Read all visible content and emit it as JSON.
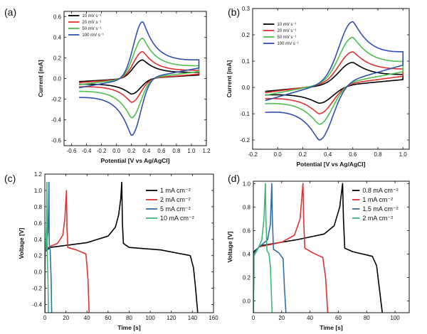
{
  "chart_data": [
    {
      "panel": "(a)",
      "type": "line",
      "xlabel": "Potential [V vs Ag/AgCl]",
      "ylabel": "Current [mA]",
      "xlim": [
        -0.7,
        1.2
      ],
      "ylim": [
        -0.65,
        0.65
      ],
      "xticks": [
        "-0.6",
        "-0.4",
        "-0.2",
        "0.0",
        "0.2",
        "0.4",
        "0.6",
        "0.8",
        "1.0",
        "1.2"
      ],
      "yticks": [
        "-0.6",
        "-0.4",
        "-0.2",
        "0.0",
        "0.2",
        "0.4",
        "0.6"
      ],
      "legend_position": "top-left",
      "cv": {
        "x_start": -0.5,
        "x_end": 1.1,
        "x_ox": 0.35,
        "x_red": 0.2
      },
      "series": [
        {
          "name": "10 mV s⁻¹",
          "color": "#000000",
          "ipa": 0.18,
          "ipc": -0.15,
          "bg_start": -0.03,
          "bg_end": 0.04
        },
        {
          "name": "20 mV s⁻¹",
          "color": "#e03030",
          "ipa": 0.26,
          "ipc": -0.23,
          "bg_start": -0.04,
          "bg_end": 0.05
        },
        {
          "name": "50 mV s⁻¹",
          "color": "#4cbf4c",
          "ipa": 0.39,
          "ipc": -0.38,
          "bg_start": -0.06,
          "bg_end": 0.08
        },
        {
          "name": "100 mV s⁻¹",
          "color": "#3050b0",
          "ipa": 0.55,
          "ipc": -0.55,
          "bg_start": -0.09,
          "bg_end": 0.12
        }
      ]
    },
    {
      "panel": "(b)",
      "type": "line",
      "xlabel": "Potential [V vs Ag/AgCl]",
      "ylabel": "Current [mA]",
      "xlim": [
        -0.2,
        1.05
      ],
      "ylim": [
        -0.235,
        0.3
      ],
      "xticks": [
        "-0.2",
        "0.0",
        "0.2",
        "0.4",
        "0.6",
        "0.8",
        "1.0"
      ],
      "yticks": [
        "-0.2",
        "-0.1",
        "0.0",
        "0.1",
        "0.2",
        "0.3"
      ],
      "legend_position": "top-left",
      "cv": {
        "x_start": -0.1,
        "x_end": 1.0,
        "x_ox": 0.6,
        "x_red": 0.33
      },
      "series": [
        {
          "name": "10 mV s⁻¹",
          "color": "#000000",
          "ipa": 0.095,
          "ipc": -0.06,
          "bg_start": -0.015,
          "bg_end": 0.035
        },
        {
          "name": "20 mV s⁻¹",
          "color": "#e03030",
          "ipa": 0.135,
          "ipc": -0.1,
          "bg_start": -0.02,
          "bg_end": 0.05
        },
        {
          "name": "50 mV s⁻¹",
          "color": "#4cbf4c",
          "ipa": 0.19,
          "ipc": -0.14,
          "bg_start": -0.03,
          "bg_end": 0.07
        },
        {
          "name": "100 mV s⁻¹",
          "color": "#3050b0",
          "ipa": 0.25,
          "ipc": -0.2,
          "bg_start": -0.05,
          "bg_end": 0.1
        }
      ]
    },
    {
      "panel": "(c)",
      "type": "line",
      "xlabel": "Time [s]",
      "ylabel": "Voltage [V]",
      "xlim": [
        0,
        160
      ],
      "ylim": [
        -0.5,
        1.2
      ],
      "xticks": [
        "0",
        "20",
        "40",
        "60",
        "80",
        "100",
        "120",
        "140",
        "160"
      ],
      "yticks": [
        "-0.4",
        "-0.2",
        "0.0",
        "0.2",
        "0.4",
        "0.6",
        "0.8",
        "1.0",
        "1.2"
      ],
      "legend_position": "top-right",
      "series": [
        {
          "name": "1 mA cm⁻²",
          "color": "#000000",
          "points": [
            [
              0,
              -0.5
            ],
            [
              0.3,
              0.25
            ],
            [
              5,
              0.3
            ],
            [
              40,
              0.36
            ],
            [
              60,
              0.44
            ],
            [
              67,
              0.55
            ],
            [
              70,
              0.7
            ],
            [
              72,
              0.9
            ],
            [
              73,
              1.1
            ],
            [
              73.6,
              0.6
            ],
            [
              74.5,
              0.35
            ],
            [
              80,
              0.3
            ],
            [
              110,
              0.27
            ],
            [
              138,
              0.2
            ],
            [
              141,
              0.05
            ],
            [
              143,
              -0.2
            ],
            [
              145,
              -0.5
            ]
          ]
        },
        {
          "name": "2 mA cm⁻²",
          "color": "#e03030",
          "points": [
            [
              0,
              -0.5
            ],
            [
              0.3,
              0.25
            ],
            [
              3,
              0.3
            ],
            [
              12,
              0.35
            ],
            [
              17,
              0.45
            ],
            [
              19,
              0.65
            ],
            [
              20.5,
              1.0
            ],
            [
              21,
              0.55
            ],
            [
              21.8,
              0.3
            ],
            [
              30,
              0.27
            ],
            [
              39,
              0.22
            ],
            [
              41,
              -0.1
            ],
            [
              42,
              -0.5
            ]
          ]
        },
        {
          "name": "5 mA cm⁻²",
          "color": "#2f6fa8",
          "points": [
            [
              0,
              -0.5
            ],
            [
              0.2,
              0.25
            ],
            [
              1.5,
              0.3
            ],
            [
              3,
              0.5
            ],
            [
              3.6,
              0.8
            ],
            [
              3.9,
              1.1
            ],
            [
              4.2,
              0.35
            ],
            [
              5,
              0.28
            ],
            [
              6,
              -0.1
            ],
            [
              6.5,
              -0.5
            ]
          ]
        },
        {
          "name": "10 mA cm⁻²",
          "color": "#3cb878",
          "points": [
            [
              0,
              -0.5
            ],
            [
              0.1,
              0.25
            ],
            [
              0.8,
              0.3
            ],
            [
              1.6,
              0.6
            ],
            [
              1.95,
              1.1
            ],
            [
              2.2,
              0.3
            ],
            [
              3,
              -0.1
            ],
            [
              3.4,
              -0.5
            ]
          ]
        }
      ]
    },
    {
      "panel": "(d)",
      "type": "line",
      "xlabel": "Time [s]",
      "ylabel": "Voltage [V]",
      "xlim": [
        0,
        110
      ],
      "ylim": [
        -0.1,
        1.02
      ],
      "xticks": [
        "0",
        "20",
        "40",
        "60",
        "80",
        "100"
      ],
      "yticks": [
        "0.0",
        "0.2",
        "0.4",
        "0.6",
        "0.8",
        "1.0"
      ],
      "legend_position": "top-right",
      "series": [
        {
          "name": "0.8 mA cm⁻²",
          "color": "#000000",
          "points": [
            [
              0,
              -0.1
            ],
            [
              0.4,
              0.42
            ],
            [
              5,
              0.47
            ],
            [
              30,
              0.52
            ],
            [
              50,
              0.57
            ],
            [
              57,
              0.64
            ],
            [
              61,
              0.8
            ],
            [
              63,
              1.0
            ],
            [
              63.6,
              0.7
            ],
            [
              64.5,
              0.45
            ],
            [
              70,
              0.42
            ],
            [
              84,
              0.38
            ],
            [
              87,
              0.3
            ],
            [
              89,
              0.1
            ],
            [
              91,
              -0.1
            ]
          ]
        },
        {
          "name": "1 mA cm⁻²",
          "color": "#e03030",
          "points": [
            [
              0,
              -0.1
            ],
            [
              0.3,
              0.4
            ],
            [
              4,
              0.46
            ],
            [
              20,
              0.5
            ],
            [
              29,
              0.56
            ],
            [
              33,
              0.7
            ],
            [
              35,
              1.0
            ],
            [
              35.5,
              0.7
            ],
            [
              36.3,
              0.45
            ],
            [
              42,
              0.41
            ],
            [
              49,
              0.37
            ],
            [
              51,
              0.2
            ],
            [
              52.5,
              -0.1
            ]
          ]
        },
        {
          "name": "1.5 mA cm⁻²",
          "color": "#2f6fa8",
          "points": [
            [
              0,
              -0.1
            ],
            [
              0.3,
              0.4
            ],
            [
              3,
              0.45
            ],
            [
              10,
              0.52
            ],
            [
              12,
              0.65
            ],
            [
              13,
              1.0
            ],
            [
              13.4,
              0.7
            ],
            [
              14.2,
              0.44
            ],
            [
              18,
              0.41
            ],
            [
              21,
              0.36
            ],
            [
              22,
              0.1
            ],
            [
              23,
              -0.1
            ]
          ]
        },
        {
          "name": "2 mA cm⁻²",
          "color": "#3cb878",
          "points": [
            [
              0,
              -0.1
            ],
            [
              0.2,
              0.38
            ],
            [
              3,
              0.44
            ],
            [
              6,
              0.52
            ],
            [
              7.5,
              0.7
            ],
            [
              8.5,
              1.0
            ],
            [
              8.9,
              0.7
            ],
            [
              9.6,
              0.43
            ],
            [
              11,
              0.4
            ],
            [
              12,
              0.3
            ],
            [
              12.6,
              0.1
            ],
            [
              13.2,
              -0.1
            ]
          ]
        }
      ]
    }
  ]
}
